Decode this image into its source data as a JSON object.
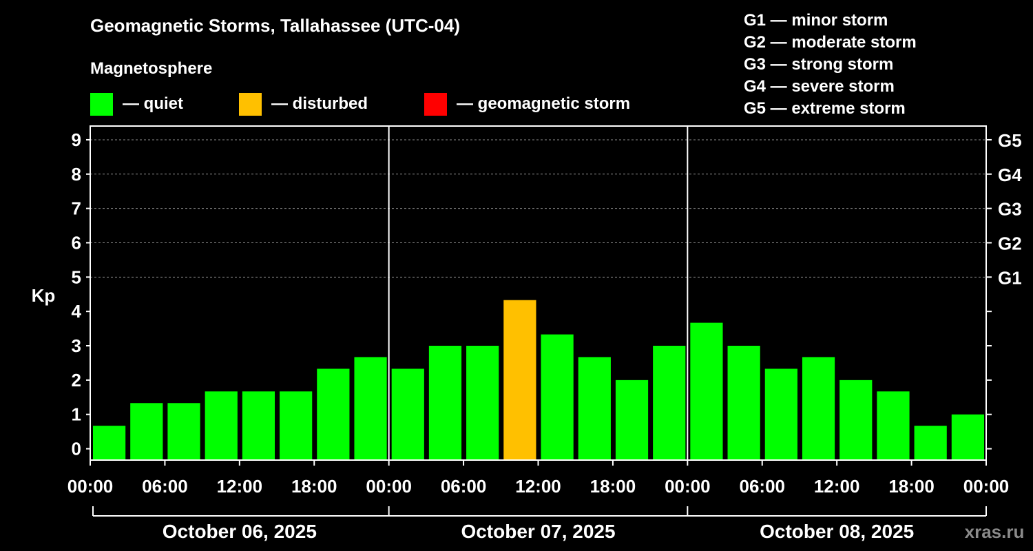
{
  "colors": {
    "quiet": "#00ff00",
    "disturbed": "#ffc000",
    "storm": "#ff0000",
    "background": "#000000",
    "grid": "#8c8c8c"
  },
  "legend": {
    "heading": "Magnetosphere",
    "quiet": "— quiet",
    "disturbed": "— disturbed",
    "storm": "— geomagnetic storm"
  },
  "g_scale": [
    "G1 — minor storm",
    "G2 — moderate storm",
    "G3 — strong storm",
    "G4 — severe storm",
    "G5 — extreme storm"
  ],
  "watermark": "xras.ru",
  "chart_data": {
    "type": "bar",
    "title": "Geomagnetic Storms, Tallahassee (UTC-04)",
    "ylabel": "Kp",
    "ylim": [
      -0.33,
      9.4
    ],
    "y_ticks": [
      0,
      1,
      2,
      3,
      4,
      5,
      6,
      7,
      8,
      9
    ],
    "right_axis": [
      {
        "kp": 5,
        "label": "G1"
      },
      {
        "kp": 6,
        "label": "G2"
      },
      {
        "kp": 7,
        "label": "G3"
      },
      {
        "kp": 8,
        "label": "G4"
      },
      {
        "kp": 9,
        "label": "G5"
      }
    ],
    "x_range_hours": [
      0,
      72
    ],
    "x_tick_hours": [
      0,
      6,
      12,
      18,
      24,
      30,
      36,
      42,
      48,
      54,
      60,
      66,
      72
    ],
    "x_tick_labels": [
      "00:00",
      "06:00",
      "12:00",
      "18:00",
      "00:00",
      "06:00",
      "12:00",
      "18:00",
      "00:00",
      "06:00",
      "12:00",
      "18:00",
      "00:00"
    ],
    "day_labels": [
      "October 06, 2025",
      "October 07, 2025",
      "October 08, 2025"
    ],
    "day_boundaries_hours": [
      24,
      48
    ],
    "series": [
      {
        "name": "Kp",
        "start_hours": [
          0,
          3,
          6,
          9,
          12,
          15,
          18,
          21,
          24,
          27,
          30,
          33,
          36,
          39,
          42,
          45,
          48,
          51,
          54,
          57,
          60,
          63,
          66,
          69
        ],
        "values": [
          0.67,
          1.33,
          1.33,
          1.67,
          1.67,
          1.67,
          2.33,
          2.67,
          2.33,
          3.0,
          3.0,
          4.33,
          3.33,
          2.67,
          2.0,
          3.0,
          3.67,
          3.0,
          2.33,
          2.67,
          2.0,
          1.67,
          0.67,
          1.0
        ],
        "levels": [
          "quiet",
          "quiet",
          "quiet",
          "quiet",
          "quiet",
          "quiet",
          "quiet",
          "quiet",
          "quiet",
          "quiet",
          "quiet",
          "disturbed",
          "quiet",
          "quiet",
          "quiet",
          "quiet",
          "quiet",
          "quiet",
          "quiet",
          "quiet",
          "quiet",
          "quiet",
          "quiet",
          "quiet"
        ]
      }
    ]
  }
}
